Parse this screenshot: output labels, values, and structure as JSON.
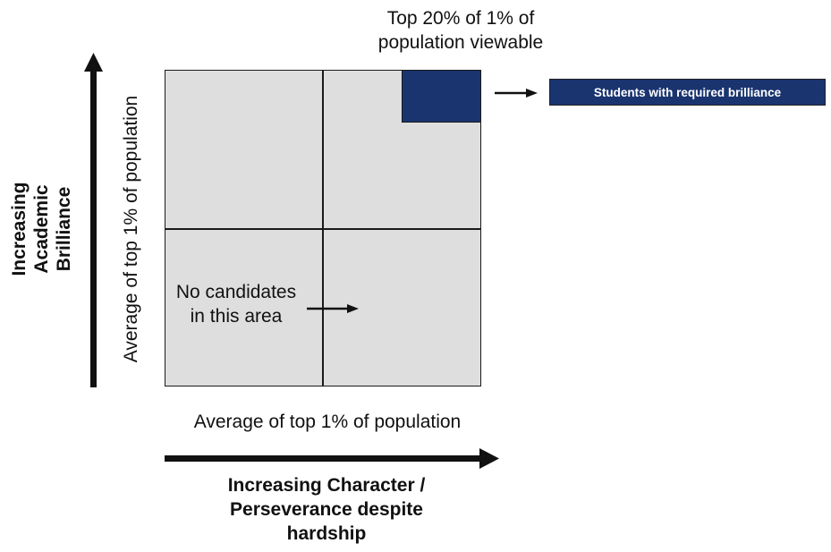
{
  "top_caption": {
    "line1": "Top 20% of 1% of",
    "line2": "population viewable"
  },
  "legend": {
    "label": "Students with required brilliance"
  },
  "no_candidates": {
    "line1": "No candidates",
    "line2": "in this area"
  },
  "x_axis": {
    "average_label": "Average of top 1% of population",
    "title_line1": "Increasing Character /",
    "title_line2": "Perseverance despite",
    "title_line3": "hardship"
  },
  "y_axis": {
    "average_label": "Average of top 1% of population",
    "title_line1": "Increasing",
    "title_line2": "Academic",
    "title_line3": "Brilliance"
  },
  "colors": {
    "highlight": "#1a3470",
    "quadrant_fill": "#dedede",
    "line": "#1a1a1a"
  }
}
